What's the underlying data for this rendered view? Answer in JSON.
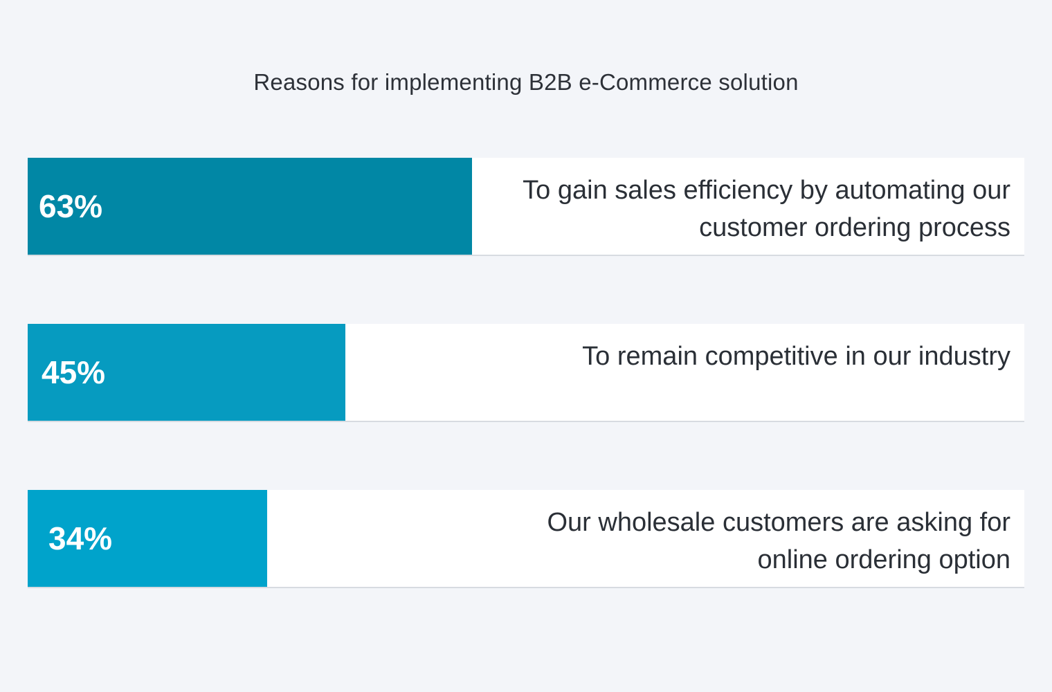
{
  "chart_data": {
    "type": "bar",
    "orientation": "horizontal",
    "title": "Reasons for implementing B2B e-Commerce solution",
    "xlim": [
      0,
      100
    ],
    "unit": "%",
    "categories": [
      "To gain sales efficiency by automating our customer ordering process",
      "To remain competitive in our industry",
      "Our wholesale customers are asking for online ordering option"
    ],
    "values": [
      63,
      45,
      34
    ],
    "value_labels": [
      "63%",
      "45%",
      "34%"
    ],
    "colors": [
      "#0187a5",
      "#069bc0",
      "#00a3cb"
    ],
    "grid": false,
    "legend": "none"
  }
}
